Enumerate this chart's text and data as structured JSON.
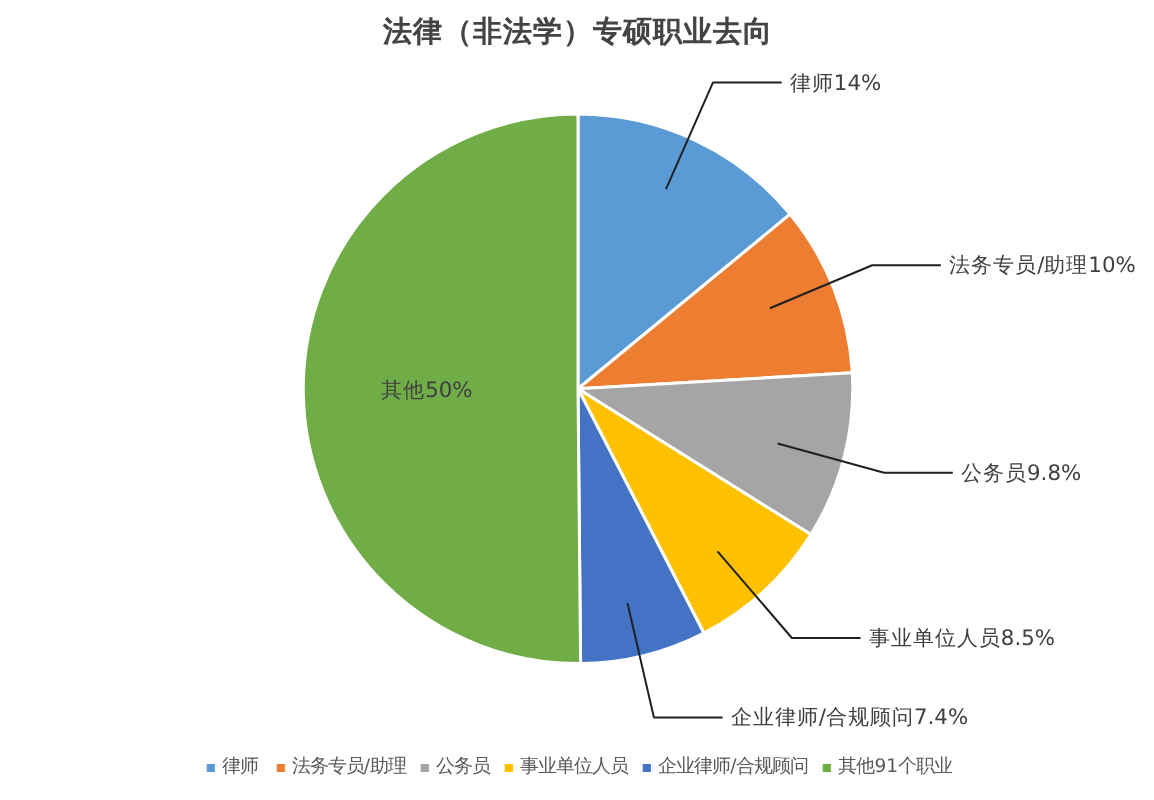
{
  "chart_data": {
    "type": "pie",
    "title": "法律（非法学）专硕职业去向",
    "categories": [
      "律师",
      "法务专员/助理",
      "公务员",
      "事业单位人员",
      "企业律师/合规顾问",
      "其他91个职业"
    ],
    "values": [
      14,
      10,
      9.8,
      8.5,
      7.4,
      50
    ],
    "colors": [
      "#5b9bd5",
      "#ed7d31",
      "#a5a5a5",
      "#ffc000",
      "#4472c4",
      "#70ad47"
    ],
    "value_labels": [
      "律师14%",
      "法务专员/助理10%",
      "公务员9.8%",
      "事业单位人员8.5%",
      "企业律师/合规顾问7.4%",
      "其他50%"
    ],
    "legend": "bottom"
  }
}
